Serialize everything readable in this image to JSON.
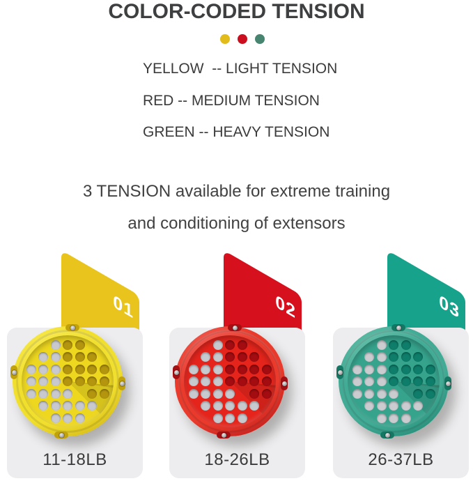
{
  "title": "COLOR-CODED TENSION",
  "tension_dots": [
    {
      "name": "yellow",
      "color": "#e2bc1b"
    },
    {
      "name": "red",
      "color": "#cb0f1e"
    },
    {
      "name": "green",
      "color": "#478570"
    }
  ],
  "legend_lines": [
    "YELLOW  -- LIGHT TENSION",
    "RED -- MEDIUM TENSION",
    "GREEN -- HEAVY TENSION"
  ],
  "description_lines": [
    "3 TENSION available for extreme training",
    "and conditioning of extensors"
  ],
  "products": [
    {
      "number": "01",
      "weight_range": "11-18LB",
      "tension_level": "LIGHT",
      "card_color": "#e9c41d",
      "card_color_dark": "#d0a90e",
      "disc_face_color": "#eed81f",
      "disc_rim_color": "#f1df2e",
      "disc_rim_highlight": "#f9ec55",
      "disc_edge_color": "#c2a20a",
      "hole_dark_color": "#b4950e",
      "hole_gray_color": "#c7c9ce"
    },
    {
      "number": "02",
      "weight_range": "18-26LB",
      "tension_level": "MEDIUM",
      "card_color": "#d6101d",
      "card_color_dark": "#b10d15",
      "disc_face_color": "#e5251c",
      "disc_rim_color": "#e93a2c",
      "disc_rim_highlight": "#f2655c",
      "disc_edge_color": "#a50e12",
      "hole_dark_color": "#a30c10",
      "hole_gray_color": "#c6c9ce"
    },
    {
      "number": "03",
      "weight_range": "26-37LB",
      "tension_level": "HEAVY",
      "card_color": "#16a28b",
      "card_color_dark": "#0c8873",
      "disc_face_color": "#36a48d",
      "disc_rim_color": "#41ab95",
      "disc_rim_highlight": "#6cc2ac",
      "disc_edge_color": "#137763",
      "hole_dark_color": "#0e7d6a",
      "hole_gray_color": "#cacccf"
    }
  ],
  "panel_color": "#ededef",
  "background_color": "#ffffff",
  "text_color": "#3e3f40"
}
